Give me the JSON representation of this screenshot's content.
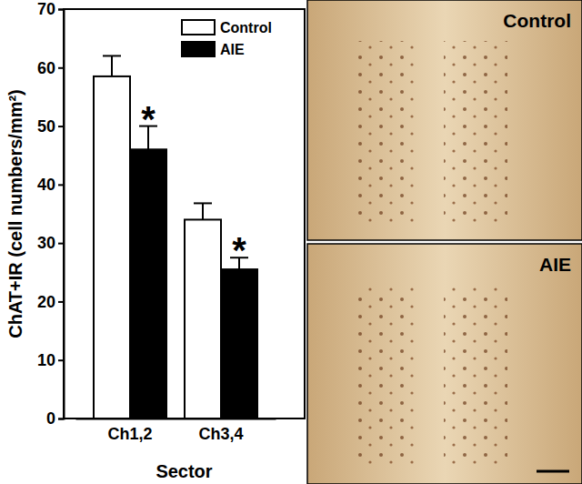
{
  "chart_data": {
    "type": "bar",
    "categories": [
      "Ch1,2",
      "Ch3,4"
    ],
    "x_label": "Sector",
    "y_label": "ChAT+IR (cell numbers/mm²)",
    "ylim": [
      0,
      70
    ],
    "yticks": [
      0,
      10,
      20,
      30,
      40,
      50,
      60,
      70
    ],
    "legend": "upper right",
    "series": [
      {
        "name": "Control",
        "color": "#ffffff",
        "values": [
          58.5,
          34
        ],
        "errors": [
          3.5,
          2.8
        ]
      },
      {
        "name": "AIE",
        "color": "#000000",
        "values": [
          46,
          25.5
        ],
        "errors": [
          4,
          2
        ],
        "significance": [
          "*",
          "*"
        ]
      }
    ]
  },
  "images": [
    {
      "label": "Control"
    },
    {
      "label": "AIE"
    }
  ]
}
